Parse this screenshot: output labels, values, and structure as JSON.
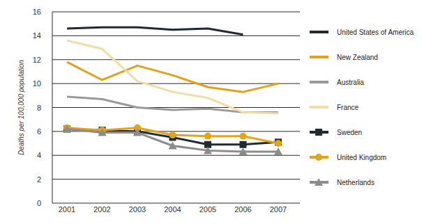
{
  "chart_data": {
    "type": "line",
    "y_label": "Deaths per 100,000 population",
    "categories": [
      "2001",
      "2002",
      "2003",
      "2004",
      "2005",
      "2006",
      "2007"
    ],
    "series": [
      {
        "name": "United States of America",
        "color": "#1f2a33",
        "marker": "none",
        "line_style": "solid",
        "values": [
          14.6,
          14.7,
          14.7,
          14.5,
          14.6,
          14.1,
          null
        ]
      },
      {
        "name": "New Zealand",
        "color": "#dea21c",
        "marker": "none",
        "line_style": "solid",
        "values": [
          11.8,
          10.3,
          11.5,
          10.7,
          9.7,
          9.3,
          10.0
        ]
      },
      {
        "name": "Australia",
        "color": "#9a9a9a",
        "marker": "none",
        "line_style": "solid",
        "values": [
          8.9,
          8.7,
          8.0,
          7.8,
          7.9,
          7.6,
          7.6
        ]
      },
      {
        "name": "France",
        "color": "#f3dca6",
        "marker": "none",
        "line_style": "solid",
        "values": [
          13.6,
          12.9,
          10.2,
          9.3,
          8.8,
          7.6,
          7.5
        ]
      },
      {
        "name": "Sweden",
        "color": "#1f2a33",
        "marker": "square",
        "line_style": "solid",
        "values": [
          6.2,
          6.1,
          6.0,
          5.5,
          4.9,
          4.9,
          5.1
        ]
      },
      {
        "name": "United Kingdom",
        "color": "#e2a418",
        "marker": "circle",
        "line_style": "solid",
        "values": [
          6.3,
          6.1,
          6.3,
          5.7,
          5.6,
          5.6,
          5.0
        ]
      },
      {
        "name": "Netherlands",
        "color": "#8c8c8c",
        "marker": "triangle",
        "line_style": "solid",
        "values": [
          6.2,
          5.9,
          5.9,
          4.8,
          4.4,
          4.3,
          4.3
        ]
      }
    ],
    "ylim": [
      0,
      16
    ],
    "yticks": [
      0,
      2,
      4,
      6,
      8,
      10,
      12,
      14,
      16
    ],
    "grid": true,
    "legend": "right"
  }
}
